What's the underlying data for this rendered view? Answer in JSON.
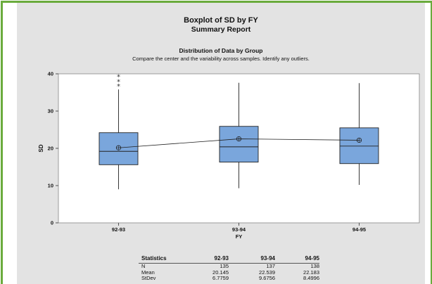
{
  "report": {
    "title": "Boxplot of SD by FY",
    "subtitle": "Summary Report"
  },
  "chart_data": {
    "type": "boxplot",
    "title": "Distribution of Data by Group",
    "subtitle": "Compare the center and the variability across samples. Identify any outliers.",
    "xlabel": "FY",
    "ylabel": "SD",
    "ylim": [
      0,
      40
    ],
    "yticks": [
      0,
      10,
      20,
      30,
      40
    ],
    "categories": [
      "92-93",
      "93-94",
      "94-95"
    ],
    "boxes": [
      {
        "category": "92-93",
        "whisker_low": 9,
        "q1": 15.6,
        "median": 19.2,
        "q3": 24.2,
        "whisker_high": 35.8,
        "mean": 20.145,
        "outliers": [
          36.8,
          38.0,
          39.3
        ]
      },
      {
        "category": "93-94",
        "whisker_low": 9.3,
        "q1": 16.3,
        "median": 20.4,
        "q3": 25.9,
        "whisker_high": 37.6,
        "mean": 22.539,
        "outliers": []
      },
      {
        "category": "94-95",
        "whisker_low": 10.2,
        "q1": 15.9,
        "median": 20.6,
        "q3": 25.5,
        "whisker_high": 37.5,
        "mean": 22.183,
        "outliers": []
      }
    ],
    "box_color": "#7aa6dc",
    "grid": false
  },
  "stats_table": {
    "header": [
      "Statistics",
      "92-93",
      "93-94",
      "94-95"
    ],
    "rows": [
      [
        "N",
        "135",
        "137",
        "138"
      ],
      [
        "Mean",
        "20.145",
        "22.539",
        "22.183"
      ],
      [
        "StDev",
        "6.7759",
        "9.6756",
        "8.4996"
      ]
    ]
  },
  "colors": {
    "frame": "#6aab3c",
    "panel": "#e3e3e3",
    "plot_bg": "#ffffff",
    "box_fill": "#7aa6dc",
    "box_stroke": "#222222"
  }
}
